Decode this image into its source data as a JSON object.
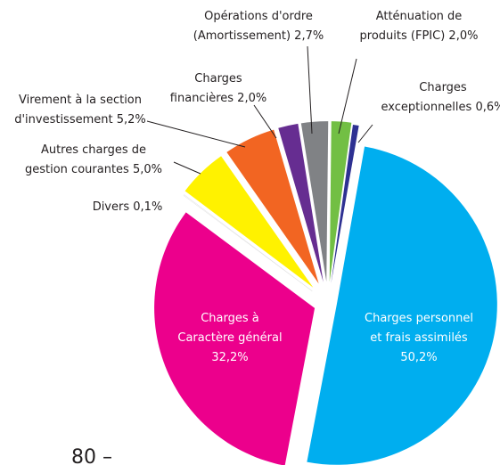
{
  "chart_data": {
    "type": "pie",
    "categories": [
      [
        "Charges personnel",
        "et frais assimilés"
      ],
      [
        "Charges à",
        "Caractère général"
      ],
      [
        "Divers"
      ],
      [
        "Autres charges de",
        "gestion courantes"
      ],
      [
        "Virement à la section",
        "d'investissement"
      ],
      [
        "Charges",
        "financières"
      ],
      [
        "Opérations d'ordre",
        "(Amortissement)"
      ],
      [
        "Atténuation de",
        "produits (FPIC)"
      ],
      [
        "Charges",
        "exceptionnelles"
      ]
    ],
    "values": [
      50.2,
      32.2,
      0.1,
      5.0,
      5.2,
      2.0,
      2.7,
      2.0,
      0.6
    ],
    "value_labels": [
      "50,2%",
      "32,2%",
      "0,1%",
      "5,0%",
      "5,2%",
      "2,0%",
      "2,7%",
      "2,0%",
      "0,6%"
    ],
    "colors": [
      "#00aeef",
      "#ec008c",
      "#ffffff",
      "#fff200",
      "#f26522",
      "#662d91",
      "#808285",
      "#72bf44",
      "#2e3192"
    ],
    "footer_fragment": "80 –"
  }
}
